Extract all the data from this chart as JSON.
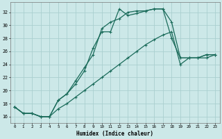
{
  "xlabel": "Humidex (Indice chaleur)",
  "bg_color": "#cce8e8",
  "grid_color": "#aacfcf",
  "line_color": "#1a6b5a",
  "xlim": [
    -0.5,
    23.5
  ],
  "ylim": [
    15.0,
    33.5
  ],
  "yticks": [
    16,
    18,
    20,
    22,
    24,
    26,
    28,
    30,
    32
  ],
  "xticks": [
    0,
    1,
    2,
    3,
    4,
    5,
    6,
    7,
    8,
    9,
    10,
    11,
    12,
    13,
    14,
    15,
    16,
    17,
    18,
    19,
    20,
    21,
    22,
    23
  ],
  "line1_x": [
    0,
    1,
    2,
    3,
    4,
    5,
    6,
    7,
    8,
    9,
    10,
    11,
    12,
    13,
    14,
    15,
    16,
    17,
    18,
    19,
    20,
    21,
    22,
    23
  ],
  "line1_y": [
    17.5,
    16.5,
    16.5,
    16.0,
    16.0,
    18.5,
    19.5,
    21.0,
    23.0,
    26.5,
    29.0,
    29.0,
    32.5,
    31.5,
    31.8,
    32.2,
    32.5,
    32.5,
    30.5,
    25.0,
    25.0,
    25.0,
    25.5,
    25.5
  ],
  "line2_x": [
    0,
    1,
    2,
    3,
    4,
    5,
    6,
    7,
    8,
    9,
    10,
    11,
    12,
    13,
    14,
    15,
    16,
    17,
    18,
    19,
    20,
    21,
    22,
    23
  ],
  "line2_y": [
    17.5,
    16.5,
    16.5,
    16.0,
    16.0,
    18.5,
    19.5,
    21.5,
    23.5,
    25.5,
    29.5,
    30.5,
    31.0,
    32.0,
    32.2,
    32.2,
    32.5,
    32.5,
    28.0,
    25.0,
    25.0,
    25.0,
    25.5,
    25.5
  ],
  "line3_x": [
    0,
    1,
    2,
    3,
    4,
    5,
    6,
    7,
    8,
    9,
    10,
    11,
    12,
    13,
    14,
    15,
    16,
    17,
    18,
    19,
    20,
    21,
    22,
    23
  ],
  "line3_y": [
    17.5,
    16.5,
    16.5,
    16.0,
    16.0,
    17.2,
    18.0,
    19.0,
    20.0,
    21.0,
    22.0,
    23.0,
    24.0,
    25.0,
    26.0,
    27.0,
    27.8,
    28.5,
    29.0,
    24.0,
    25.0,
    25.0,
    25.0,
    25.5
  ]
}
